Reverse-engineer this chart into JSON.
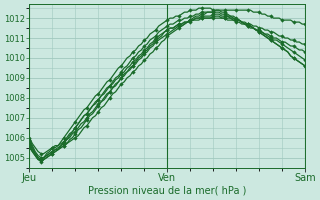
{
  "title": "",
  "xlabel": "Pression niveau de la mer( hPa )",
  "ylabel": "",
  "background_color": "#cce8e0",
  "grid_color": "#a0c8be",
  "line_color": "#1a6b2a",
  "ylim": [
    1004.5,
    1012.7
  ],
  "yticks": [
    1005,
    1006,
    1007,
    1008,
    1009,
    1010,
    1011,
    1012
  ],
  "xtick_labels": [
    "Jeu",
    "Ven",
    "Sam"
  ],
  "xtick_positions": [
    0,
    48,
    96
  ],
  "total_points": 97,
  "series": [
    [
      1005.9,
      1005.6,
      1005.3,
      1005.1,
      1005.0,
      1005.0,
      1005.1,
      1005.2,
      1005.3,
      1005.4,
      1005.4,
      1005.5,
      1005.6,
      1005.7,
      1005.8,
      1005.9,
      1006.0,
      1006.1,
      1006.3,
      1006.5,
      1006.6,
      1006.8,
      1007.0,
      1007.1,
      1007.3,
      1007.5,
      1007.6,
      1007.8,
      1008.0,
      1008.2,
      1008.3,
      1008.5,
      1008.7,
      1008.8,
      1009.0,
      1009.1,
      1009.3,
      1009.4,
      1009.6,
      1009.7,
      1009.9,
      1010.0,
      1010.2,
      1010.3,
      1010.5,
      1010.6,
      1010.8,
      1010.9,
      1011.1,
      1011.2,
      1011.3,
      1011.4,
      1011.5,
      1011.6,
      1011.7,
      1011.8,
      1011.9,
      1012.0,
      1012.1,
      1012.1,
      1012.2,
      1012.2,
      1012.3,
      1012.3,
      1012.3,
      1012.4,
      1012.4,
      1012.4,
      1012.4,
      1012.4,
      1012.4,
      1012.4,
      1012.4,
      1012.4,
      1012.4,
      1012.4,
      1012.4,
      1012.4,
      1012.3,
      1012.3,
      1012.3,
      1012.2,
      1012.2,
      1012.1,
      1012.1,
      1012.0,
      1012.0,
      1012.0,
      1011.9,
      1011.9,
      1011.9,
      1011.9,
      1011.8,
      1011.8,
      1011.8,
      1011.7,
      1011.7
    ],
    [
      1005.8,
      1005.5,
      1005.2,
      1005.0,
      1004.9,
      1004.9,
      1005.0,
      1005.1,
      1005.2,
      1005.3,
      1005.4,
      1005.5,
      1005.6,
      1005.7,
      1005.9,
      1006.0,
      1006.2,
      1006.4,
      1006.5,
      1006.7,
      1006.9,
      1007.1,
      1007.2,
      1007.4,
      1007.6,
      1007.8,
      1007.9,
      1008.1,
      1008.3,
      1008.5,
      1008.6,
      1008.8,
      1009.0,
      1009.2,
      1009.3,
      1009.5,
      1009.6,
      1009.8,
      1010.0,
      1010.1,
      1010.3,
      1010.4,
      1010.6,
      1010.7,
      1010.9,
      1011.0,
      1011.1,
      1011.3,
      1011.4,
      1011.5,
      1011.5,
      1011.6,
      1011.7,
      1011.7,
      1011.8,
      1011.8,
      1011.9,
      1011.9,
      1012.0,
      1012.0,
      1012.0,
      1012.0,
      1012.0,
      1012.0,
      1012.1,
      1012.1,
      1012.1,
      1012.0,
      1012.0,
      1012.0,
      1012.0,
      1011.9,
      1011.9,
      1011.9,
      1011.8,
      1011.8,
      1011.7,
      1011.7,
      1011.6,
      1011.6,
      1011.5,
      1011.5,
      1011.4,
      1011.4,
      1011.3,
      1011.3,
      1011.2,
      1011.1,
      1011.1,
      1011.0,
      1011.0,
      1010.9,
      1010.9,
      1010.8,
      1010.8,
      1010.7,
      1010.7
    ],
    [
      1006.0,
      1005.7,
      1005.5,
      1005.3,
      1005.2,
      1005.2,
      1005.3,
      1005.4,
      1005.5,
      1005.6,
      1005.6,
      1005.7,
      1005.8,
      1005.9,
      1006.0,
      1006.2,
      1006.3,
      1006.5,
      1006.7,
      1006.8,
      1007.0,
      1007.2,
      1007.3,
      1007.5,
      1007.7,
      1007.8,
      1008.0,
      1008.2,
      1008.3,
      1008.5,
      1008.7,
      1008.8,
      1009.0,
      1009.1,
      1009.3,
      1009.4,
      1009.6,
      1009.7,
      1009.9,
      1010.0,
      1010.2,
      1010.3,
      1010.5,
      1010.6,
      1010.8,
      1010.9,
      1011.0,
      1011.1,
      1011.2,
      1011.3,
      1011.4,
      1011.5,
      1011.6,
      1011.6,
      1011.7,
      1011.8,
      1011.8,
      1011.9,
      1011.9,
      1011.9,
      1012.0,
      1012.0,
      1012.0,
      1012.0,
      1012.0,
      1012.0,
      1012.0,
      1012.0,
      1012.0,
      1011.9,
      1011.9,
      1011.9,
      1011.8,
      1011.8,
      1011.7,
      1011.7,
      1011.6,
      1011.6,
      1011.5,
      1011.4,
      1011.4,
      1011.3,
      1011.2,
      1011.2,
      1011.1,
      1011.0,
      1011.0,
      1010.9,
      1010.8,
      1010.8,
      1010.7,
      1010.6,
      1010.6,
      1010.5,
      1010.4,
      1010.4,
      1010.3
    ],
    [
      1005.7,
      1005.4,
      1005.2,
      1005.0,
      1004.9,
      1005.0,
      1005.1,
      1005.2,
      1005.3,
      1005.4,
      1005.5,
      1005.6,
      1005.8,
      1006.0,
      1006.2,
      1006.3,
      1006.5,
      1006.7,
      1006.9,
      1007.1,
      1007.2,
      1007.4,
      1007.6,
      1007.7,
      1007.9,
      1008.1,
      1008.2,
      1008.4,
      1008.6,
      1008.7,
      1008.9,
      1009.0,
      1009.2,
      1009.3,
      1009.5,
      1009.6,
      1009.8,
      1009.9,
      1010.1,
      1010.2,
      1010.4,
      1010.5,
      1010.7,
      1010.8,
      1011.0,
      1011.1,
      1011.2,
      1011.3,
      1011.4,
      1011.5,
      1011.5,
      1011.6,
      1011.7,
      1011.7,
      1011.8,
      1011.8,
      1011.9,
      1011.9,
      1012.0,
      1012.0,
      1012.1,
      1012.1,
      1012.1,
      1012.1,
      1012.2,
      1012.2,
      1012.2,
      1012.1,
      1012.1,
      1012.1,
      1012.0,
      1012.0,
      1011.9,
      1011.9,
      1011.8,
      1011.7,
      1011.7,
      1011.6,
      1011.5,
      1011.4,
      1011.4,
      1011.3,
      1011.2,
      1011.1,
      1011.0,
      1010.9,
      1010.9,
      1010.8,
      1010.7,
      1010.6,
      1010.5,
      1010.4,
      1010.3,
      1010.2,
      1010.1,
      1010.0,
      1009.9
    ],
    [
      1005.6,
      1005.3,
      1005.1,
      1004.9,
      1004.8,
      1004.9,
      1005.0,
      1005.1,
      1005.2,
      1005.3,
      1005.4,
      1005.6,
      1005.7,
      1005.9,
      1006.1,
      1006.3,
      1006.5,
      1006.7,
      1006.9,
      1007.1,
      1007.2,
      1007.4,
      1007.6,
      1007.8,
      1007.9,
      1008.1,
      1008.3,
      1008.5,
      1008.6,
      1008.8,
      1009.0,
      1009.1,
      1009.3,
      1009.5,
      1009.6,
      1009.8,
      1010.0,
      1010.1,
      1010.3,
      1010.4,
      1010.6,
      1010.7,
      1010.9,
      1011.0,
      1011.1,
      1011.3,
      1011.4,
      1011.5,
      1011.6,
      1011.7,
      1011.7,
      1011.8,
      1011.9,
      1011.9,
      1012.0,
      1012.0,
      1012.1,
      1012.1,
      1012.2,
      1012.2,
      1012.3,
      1012.3,
      1012.3,
      1012.3,
      1012.3,
      1012.3,
      1012.3,
      1012.2,
      1012.2,
      1012.1,
      1012.1,
      1012.0,
      1011.9,
      1011.9,
      1011.8,
      1011.7,
      1011.6,
      1011.5,
      1011.5,
      1011.4,
      1011.3,
      1011.2,
      1011.1,
      1011.0,
      1010.9,
      1010.8,
      1010.7,
      1010.6,
      1010.5,
      1010.4,
      1010.3,
      1010.1,
      1010.0,
      1009.9,
      1009.8,
      1009.7,
      1009.6
    ],
    [
      1005.5,
      1005.3,
      1005.1,
      1004.9,
      1004.9,
      1005.0,
      1005.2,
      1005.3,
      1005.5,
      1005.5,
      1005.6,
      1005.8,
      1006.0,
      1006.2,
      1006.4,
      1006.6,
      1006.8,
      1007.0,
      1007.2,
      1007.4,
      1007.5,
      1007.7,
      1007.9,
      1008.1,
      1008.2,
      1008.4,
      1008.6,
      1008.8,
      1008.9,
      1009.1,
      1009.3,
      1009.5,
      1009.6,
      1009.8,
      1010.0,
      1010.1,
      1010.3,
      1010.4,
      1010.6,
      1010.7,
      1010.9,
      1011.0,
      1011.2,
      1011.3,
      1011.4,
      1011.6,
      1011.7,
      1011.8,
      1011.9,
      1012.0,
      1012.0,
      1012.1,
      1012.1,
      1012.2,
      1012.3,
      1012.3,
      1012.4,
      1012.4,
      1012.4,
      1012.5,
      1012.5,
      1012.5,
      1012.5,
      1012.5,
      1012.4,
      1012.4,
      1012.4,
      1012.3,
      1012.3,
      1012.2,
      1012.1,
      1012.1,
      1012.0,
      1011.9,
      1011.8,
      1011.7,
      1011.7,
      1011.6,
      1011.5,
      1011.4,
      1011.3,
      1011.2,
      1011.1,
      1011.0,
      1010.9,
      1010.8,
      1010.7,
      1010.6,
      1010.5,
      1010.4,
      1010.3,
      1010.1,
      1010.0,
      1009.9,
      1009.8,
      1009.7,
      1009.6
    ]
  ]
}
